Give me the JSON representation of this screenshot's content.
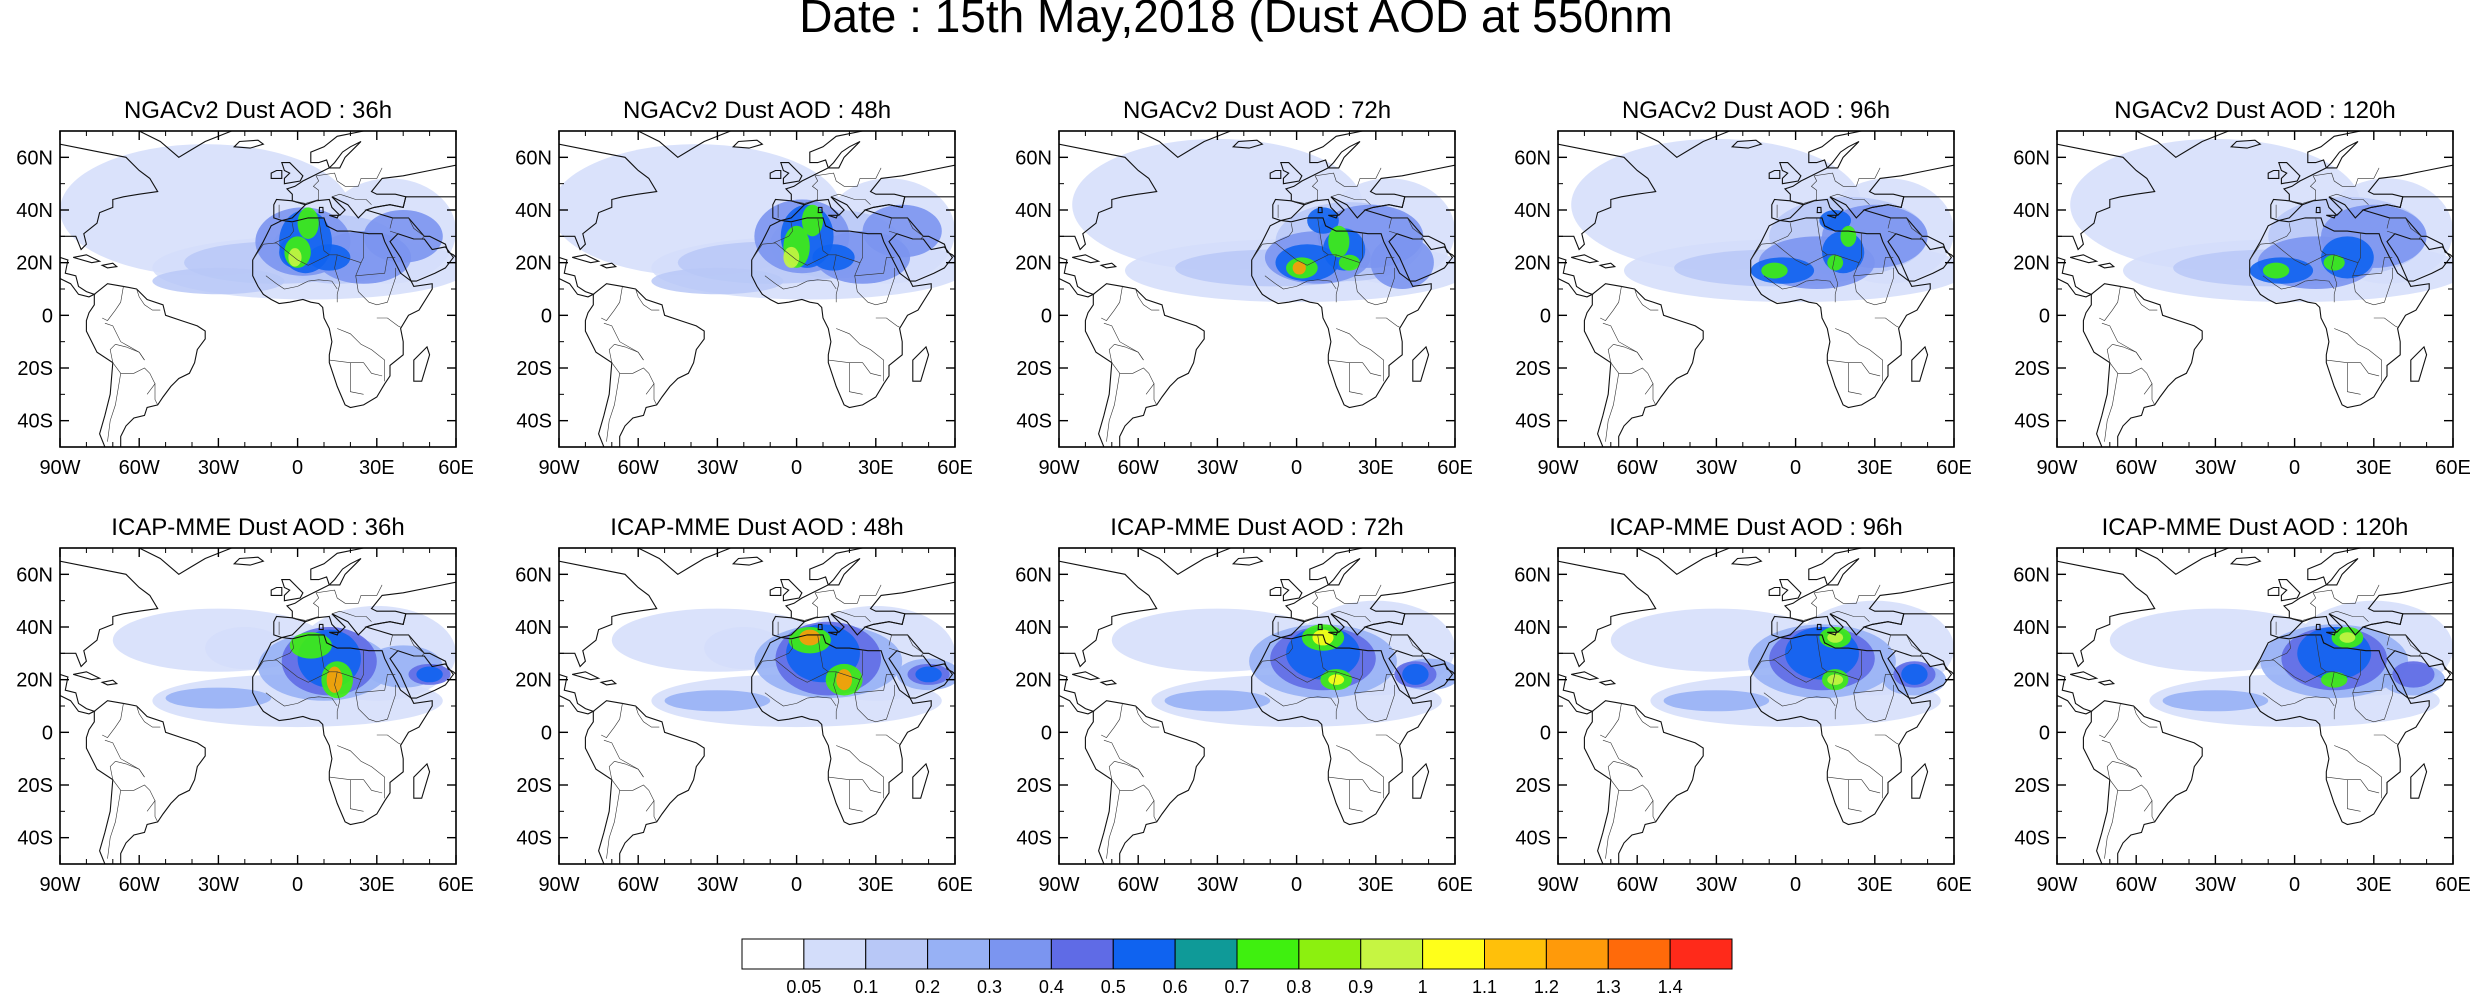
{
  "title": "Date : 15th May,2018 (Dust AOD at 550nm",
  "panels": [
    {
      "title": "NGACv2 Dust AOD : 36h",
      "model": "NGACv2",
      "lead": "36h"
    },
    {
      "title": "NGACv2 Dust AOD : 48h",
      "model": "NGACv2",
      "lead": "48h"
    },
    {
      "title": "NGACv2 Dust AOD : 72h",
      "model": "NGACv2",
      "lead": "72h"
    },
    {
      "title": "NGACv2 Dust AOD : 96h",
      "model": "NGACv2",
      "lead": "96h"
    },
    {
      "title": "NGACv2 Dust AOD : 120h",
      "model": "NGACv2",
      "lead": "120h"
    },
    {
      "title": "ICAP-MME Dust AOD : 36h",
      "model": "ICAP-MME",
      "lead": "36h"
    },
    {
      "title": "ICAP-MME Dust AOD : 48h",
      "model": "ICAP-MME",
      "lead": "48h"
    },
    {
      "title": "ICAP-MME Dust AOD : 72h",
      "model": "ICAP-MME",
      "lead": "72h"
    },
    {
      "title": "ICAP-MME Dust AOD : 96h",
      "model": "ICAP-MME",
      "lead": "96h"
    },
    {
      "title": "ICAP-MME Dust AOD : 120h",
      "model": "ICAP-MME",
      "lead": "120h"
    }
  ],
  "map_extent": {
    "lon": [
      -90,
      60
    ],
    "lat": [
      -50,
      70
    ]
  },
  "lon_ticks": [
    {
      "value": -90,
      "label": "90W"
    },
    {
      "value": -60,
      "label": "60W"
    },
    {
      "value": -30,
      "label": "30W"
    },
    {
      "value": 0,
      "label": "0"
    },
    {
      "value": 30,
      "label": "30E"
    },
    {
      "value": 60,
      "label": "60E"
    }
  ],
  "lat_ticks": [
    {
      "value": 60,
      "label": "60N"
    },
    {
      "value": 40,
      "label": "40N"
    },
    {
      "value": 20,
      "label": "20N"
    },
    {
      "value": 0,
      "label": "0"
    },
    {
      "value": -20,
      "label": "20S"
    },
    {
      "value": -40,
      "label": "40S"
    }
  ],
  "colorbar": {
    "levels": [
      "0.05",
      "0.1",
      "0.2",
      "0.3",
      "0.4",
      "0.5",
      "0.6",
      "0.7",
      "0.8",
      "0.9",
      "1",
      "1.1",
      "1.2",
      "1.3",
      "1.4"
    ],
    "colors": [
      "#ffffff",
      "#d3ddfa",
      "#b8c8f7",
      "#97b1f5",
      "#7b95f0",
      "#5f6be6",
      "#0f63f0",
      "#0f9a98",
      "#3ff00f",
      "#8cf00f",
      "#c6f542",
      "#ffff1a",
      "#ffc00a",
      "#ff9a0a",
      "#ff6a0a",
      "#ff2a1a"
    ]
  }
}
